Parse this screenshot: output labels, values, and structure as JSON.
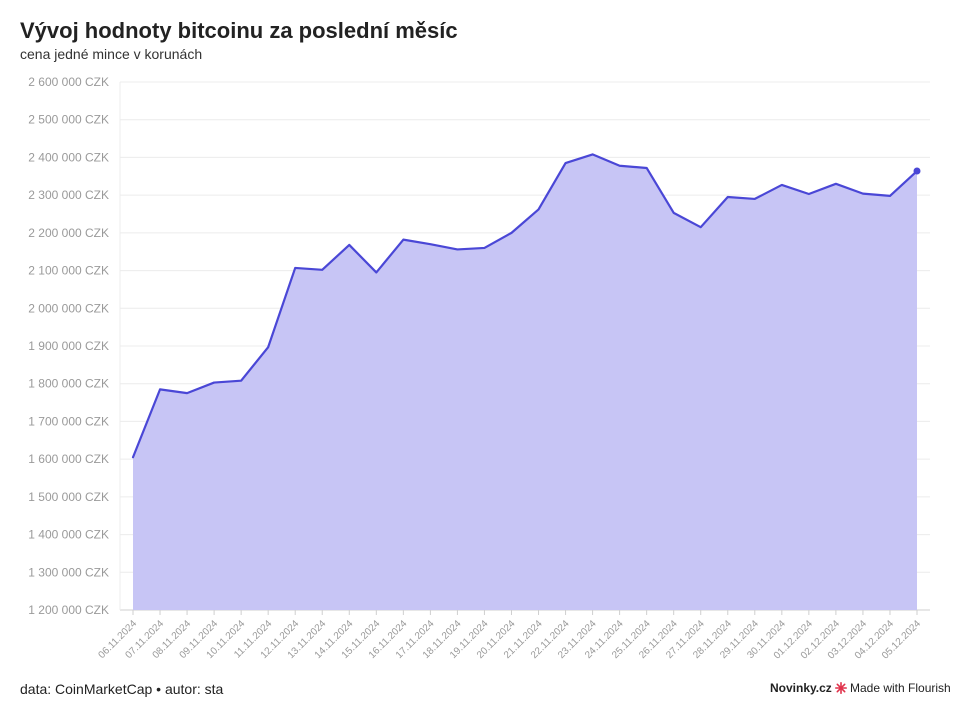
{
  "header": {
    "title": "Vývoj hodnoty bitcoinu za poslední měsíc",
    "subtitle": "cena jedné mince v korunách"
  },
  "footer": {
    "source": "data: CoinMarketCap • autor: sta",
    "brand": "Novinky.cz",
    "made_with": "Made with Flourish"
  },
  "chart_data": {
    "type": "area",
    "title": "Vývoj hodnoty bitcoinu za poslední měsíc",
    "subtitle": "cena jedné mince v korunách",
    "xlabel": "",
    "ylabel": "",
    "y_unit_suffix": " CZK",
    "ylim": [
      1200000,
      2600000
    ],
    "yticks": [
      1200000,
      1300000,
      1400000,
      1500000,
      1600000,
      1700000,
      1800000,
      1900000,
      2000000,
      2100000,
      2200000,
      2300000,
      2400000,
      2500000,
      2600000
    ],
    "ytick_labels": [
      "1 200 000 CZK",
      "1 300 000 CZK",
      "1 400 000 CZK",
      "1 500 000 CZK",
      "1 600 000 CZK",
      "1 700 000 CZK",
      "1 800 000 CZK",
      "1 900 000 CZK",
      "2 000 000 CZK",
      "2 100 000 CZK",
      "2 200 000 CZK",
      "2 300 000 CZK",
      "2 400 000 CZK",
      "2 500 000 CZK",
      "2 600 000 CZK"
    ],
    "grid": true,
    "legend": "none",
    "fill_color": "#c7c5f5",
    "line_color": "#4a47d6",
    "x": [
      "06.11.2024",
      "07.11.2024",
      "08.11.2024",
      "09.11.2024",
      "10.11.2024",
      "11.11.2024",
      "12.11.2024",
      "13.11.2024",
      "14.11.2024",
      "15.11.2024",
      "16.11.2024",
      "17.11.2024",
      "18.11.2024",
      "19.11.2024",
      "20.11.2024",
      "21.11.2024",
      "22.11.2024",
      "23.11.2024",
      "24.11.2024",
      "25.11.2024",
      "26.11.2024",
      "27.11.2024",
      "28.11.2024",
      "29.11.2024",
      "30.11.2024",
      "01.12.2024",
      "02.12.2024",
      "03.12.2024",
      "04.12.2024",
      "05.12.2024"
    ],
    "series": [
      {
        "values": [
          1605000,
          1785000,
          1775000,
          1803000,
          1808000,
          1897000,
          2107000,
          2102000,
          2168000,
          2095000,
          2182000,
          2170000,
          2156000,
          2160000,
          2200000,
          2262000,
          2385000,
          2408000,
          2378000,
          2372000,
          2253000,
          2215000,
          2295000,
          2290000,
          2327000,
          2303000,
          2330000,
          2304000,
          2298000,
          2364000
        ]
      }
    ]
  }
}
